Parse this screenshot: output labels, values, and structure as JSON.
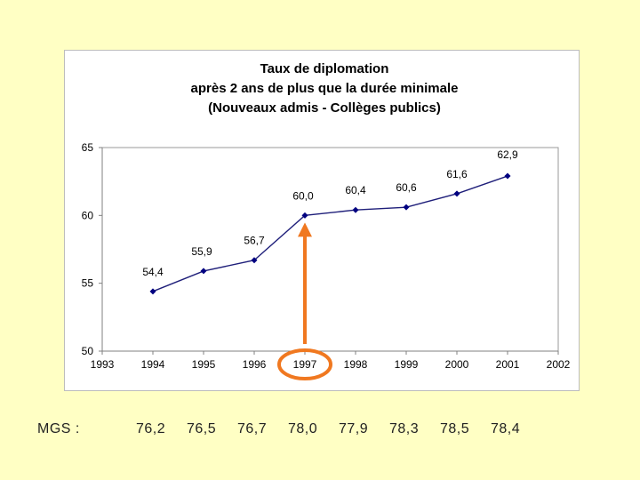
{
  "chart_data": {
    "type": "line",
    "title_lines": [
      "Taux de diplomation",
      "après 2 ans de plus que la durée minimale",
      "(Nouveaux admis - Collèges publics)"
    ],
    "xlabel": "",
    "ylabel": "",
    "x_ticks": [
      "1993",
      "1994",
      "1995",
      "1996",
      "1997",
      "1998",
      "1999",
      "2000",
      "2001",
      "2002"
    ],
    "y_ticks": [
      "50",
      "55",
      "60",
      "65"
    ],
    "xlim": [
      1993,
      2002
    ],
    "ylim": [
      50,
      65
    ],
    "grid": false,
    "series": [
      {
        "x": [
          1994,
          1995,
          1996,
          1997,
          1998,
          1999,
          2000,
          2001
        ],
        "values": [
          54.4,
          55.9,
          56.7,
          60.0,
          60.4,
          60.6,
          61.6,
          62.9
        ],
        "labels": [
          "54,4",
          "55,9",
          "56,7",
          "60,0",
          "60,4",
          "60,6",
          "61,6",
          "62,9"
        ]
      }
    ],
    "colors": {
      "line": "#1F1F7A",
      "marker": "#000080",
      "highlight": "#F07820"
    },
    "highlight": {
      "year": 1997,
      "shape": "arrow-and-circle"
    }
  },
  "mgs": {
    "label": "MGS :",
    "values": [
      "76,2",
      "76,5",
      "76,7",
      "78,0",
      "77,9",
      "78,3",
      "78,5",
      "78,4"
    ]
  }
}
